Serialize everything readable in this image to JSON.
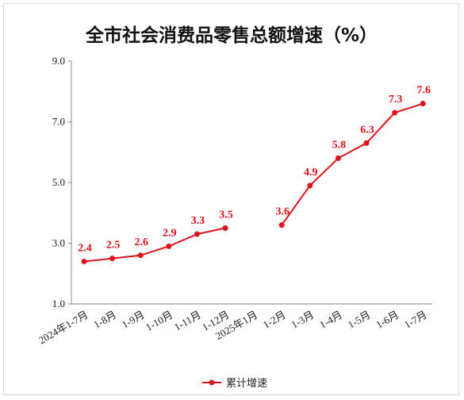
{
  "chart_data": {
    "type": "line",
    "title": "全市社会消费品零售总额增速（%）",
    "categories": [
      "2024年1-7月",
      "1-8月",
      "1-9月",
      "1-10月",
      "1-11月",
      "1-12月",
      "2025年1月",
      "1-2月",
      "1-3月",
      "1-4月",
      "1-5月",
      "1-6月",
      "1-7月"
    ],
    "series": [
      {
        "name": "累计增速",
        "color": "#e0131b",
        "values": [
          2.4,
          2.5,
          2.6,
          2.9,
          3.3,
          3.5,
          null,
          3.6,
          4.9,
          5.8,
          6.3,
          7.3,
          7.6
        ],
        "labels": [
          "2.4",
          "2.5",
          "2.6",
          "2.9",
          "3.3",
          "3.5",
          null,
          "3.6",
          "4.9",
          "5.8",
          "6.3",
          "7.3",
          "7.6"
        ]
      }
    ],
    "yticks": [
      "1.0",
      "3.0",
      "5.0",
      "7.0",
      "9.0"
    ],
    "ylim": [
      1.0,
      9.0
    ],
    "grid": false,
    "legend_position": "bottom"
  }
}
